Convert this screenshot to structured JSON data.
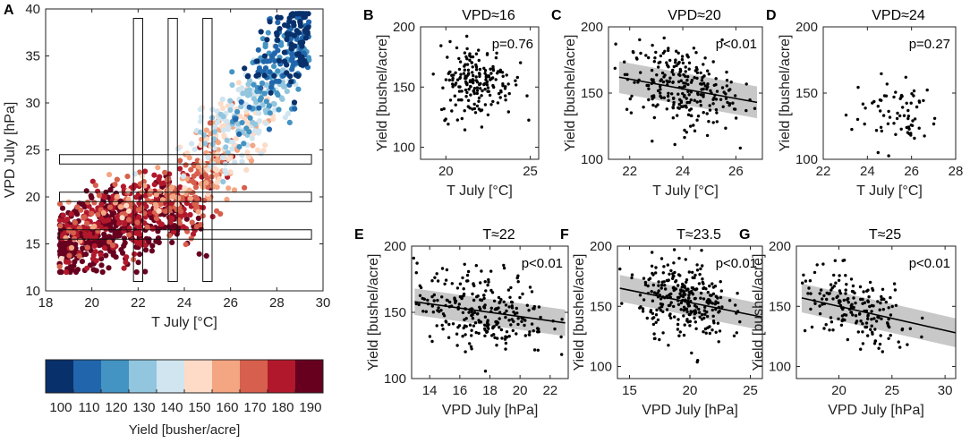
{
  "figure_title": "",
  "chart_data": [
    {
      "id": "A",
      "type": "scatter",
      "letter": "A",
      "xlabel": "T July [°C]",
      "ylabel": "VPD July [hPa]",
      "xlim": [
        18,
        30
      ],
      "ylim": [
        10,
        40
      ],
      "xticks": [
        18,
        20,
        22,
        24,
        26,
        28,
        30
      ],
      "yticks": [
        10,
        15,
        20,
        25,
        30,
        35,
        40
      ],
      "color_by": "Yield [busher/acre]",
      "colorbar": {
        "label": "Yield [busher/acre]",
        "ticks": [
          100,
          110,
          120,
          130,
          140,
          150,
          160,
          170,
          180,
          190
        ],
        "colors": [
          "#08306b",
          "#2166ac",
          "#4393c3",
          "#92c5de",
          "#d1e5f0",
          "#fddbc7",
          "#f4a582",
          "#d6604d",
          "#b2182b",
          "#67001f"
        ]
      },
      "vertical_windows_T": [
        [
          21.8,
          22.2
        ],
        [
          23.3,
          23.7
        ],
        [
          24.8,
          25.2
        ]
      ],
      "horizontal_windows_VPD": [
        [
          15.5,
          16.5
        ],
        [
          19.5,
          20.5
        ],
        [
          23.5,
          24.5
        ]
      ],
      "series_summary": "dense cloud of county-years; VPD rises with T (approx VPD ≈ 3.2·T − 48 above 24 °C), warm/high-VPD points low yield (blue), cool/low-VPD points high yield (red)"
    },
    {
      "id": "B",
      "type": "scatter",
      "letter": "B",
      "title": "VPD≈16",
      "xlabel": "T July [°C]",
      "ylabel": "Yield [bushel/acre]",
      "xlim": [
        18.5,
        25.5
      ],
      "ylim": [
        90,
        200
      ],
      "xticks": [
        20,
        25
      ],
      "yticks": [
        100,
        150,
        200
      ],
      "p_value": "p=0.76",
      "regression": null,
      "points_x_center": 21.8,
      "points_x_sd": 1.1,
      "points_y_center": 155,
      "points_y_sd": 15,
      "n": 200
    },
    {
      "id": "C",
      "type": "scatter",
      "letter": "C",
      "title": "VPD≈20",
      "xlabel": "T July [°C]",
      "ylabel": "Yield [bushel/acre]",
      "xlim": [
        21.2,
        27
      ],
      "ylim": [
        100,
        200
      ],
      "xticks": [
        22,
        24,
        26
      ],
      "yticks": [
        100,
        150,
        200
      ],
      "p_value": "p<0.01",
      "regression": {
        "x": [
          21.6,
          26.8
        ],
        "y": [
          162,
          143
        ],
        "ci_halfwidth": 12
      },
      "points_x_center": 23.9,
      "points_x_sd": 1.0,
      "points_y_center": 155,
      "points_y_sd": 15,
      "n": 260
    },
    {
      "id": "D",
      "type": "scatter",
      "letter": "D",
      "title": "VPD≈24",
      "xlabel": "T July [°C]",
      "ylabel": "Yield [bushel/acre]",
      "xlim": [
        22,
        28
      ],
      "ylim": [
        100,
        200
      ],
      "xticks": [
        22,
        24,
        26,
        28
      ],
      "yticks": [
        100,
        150,
        200
      ],
      "p_value": "p=0.27",
      "regression": null,
      "points_x_center": 25.3,
      "points_x_sd": 1.0,
      "points_y_center": 135,
      "points_y_sd": 14,
      "n": 70
    },
    {
      "id": "E",
      "type": "scatter",
      "letter": "E",
      "title": "T≈22",
      "xlabel": "VPD July [hPa]",
      "ylabel": "Yield [bushel/acre]",
      "xlim": [
        12.8,
        23.2
      ],
      "ylim": [
        100,
        200
      ],
      "xticks": [
        14,
        16,
        18,
        20,
        22
      ],
      "yticks": [
        100,
        150,
        200
      ],
      "p_value": "p<0.01",
      "regression": {
        "x": [
          13,
          23
        ],
        "y": [
          158,
          142
        ],
        "ci_halfwidth": 10
      },
      "points_x_center": 17.5,
      "points_x_sd": 2.2,
      "points_y_center": 152,
      "points_y_sd": 15,
      "n": 260
    },
    {
      "id": "F",
      "type": "scatter",
      "letter": "F",
      "title": "T≈23.5",
      "xlabel": "VPD July [hPa]",
      "ylabel": "Yield [bushel/acre]",
      "xlim": [
        14,
        26
      ],
      "ylim": [
        90,
        200
      ],
      "xticks": [
        15,
        20,
        25
      ],
      "yticks": [
        100,
        150,
        200
      ],
      "p_value": "p<0.01",
      "regression": {
        "x": [
          14.2,
          26
        ],
        "y": [
          165,
          141
        ],
        "ci_halfwidth": 11
      },
      "points_x_center": 19.5,
      "points_x_sd": 1.8,
      "points_y_center": 156,
      "points_y_sd": 16,
      "n": 280
    },
    {
      "id": "G",
      "type": "scatter",
      "letter": "G",
      "title": "T≈25",
      "xlabel": "VPD July [hPa]",
      "ylabel": "Yield [bushel/acre]",
      "xlim": [
        16,
        31
      ],
      "ylim": [
        90,
        200
      ],
      "xticks": [
        20,
        25,
        30
      ],
      "yticks": [
        100,
        150,
        200
      ],
      "p_value": "p<0.01",
      "regression": {
        "x": [
          16.5,
          31
        ],
        "y": [
          157,
          128
        ],
        "ci_halfwidth": 12
      },
      "points_x_center": 21.5,
      "points_x_sd": 2.8,
      "points_y_center": 147,
      "points_y_sd": 15,
      "n": 180
    }
  ]
}
